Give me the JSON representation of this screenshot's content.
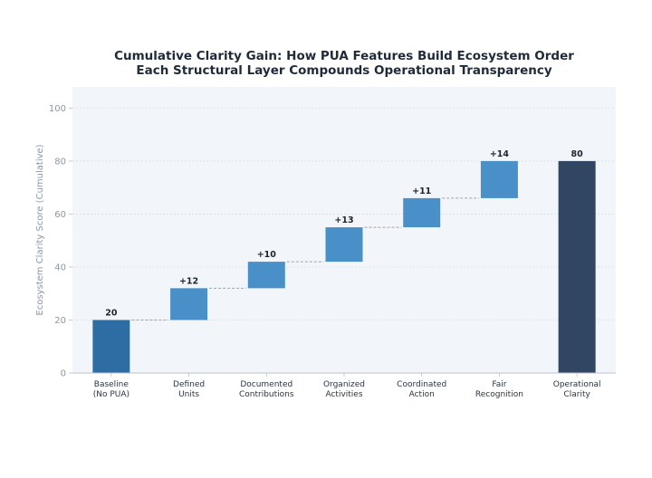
{
  "chart_data": {
    "type": "bar",
    "subtype": "waterfall",
    "title_line1": "Cumulative Clarity Gain: How PUA Features Build Ecosystem Order",
    "title_line2": "Each Structural Layer Compounds Operational Transparency",
    "xlabel": "",
    "ylabel": "Ecosystem Clarity Score (Cumulative)",
    "ylim": [
      0,
      108
    ],
    "yticks": [
      0,
      20,
      40,
      60,
      80,
      100
    ],
    "grid": true,
    "categories": [
      [
        "Baseline",
        "(No PUA)"
      ],
      [
        "Defined",
        "Units"
      ],
      [
        "Documented",
        "Contributions"
      ],
      [
        "Organized",
        "Activities"
      ],
      [
        "Coordinated",
        "Action"
      ],
      [
        "Fair",
        "Recognition"
      ],
      [
        "Operational",
        "Clarity"
      ]
    ],
    "bars": [
      {
        "kind": "base",
        "start": 0,
        "end": 20,
        "label": "20"
      },
      {
        "kind": "delta",
        "start": 20,
        "end": 32,
        "label": "+12"
      },
      {
        "kind": "delta",
        "start": 32,
        "end": 42,
        "label": "+10"
      },
      {
        "kind": "delta",
        "start": 42,
        "end": 55,
        "label": "+13"
      },
      {
        "kind": "delta",
        "start": 55,
        "end": 66,
        "label": "+11"
      },
      {
        "kind": "delta",
        "start": 66,
        "end": 80,
        "label": "+14"
      },
      {
        "kind": "total",
        "start": 0,
        "end": 80,
        "label": "80"
      }
    ],
    "colors": {
      "base": "#2e6da4",
      "delta": "#4a90c8",
      "total": "#304663",
      "plot_bg": "#f2f6fa",
      "connector": "#9aa4b0",
      "grid": "#d8dee6"
    }
  }
}
